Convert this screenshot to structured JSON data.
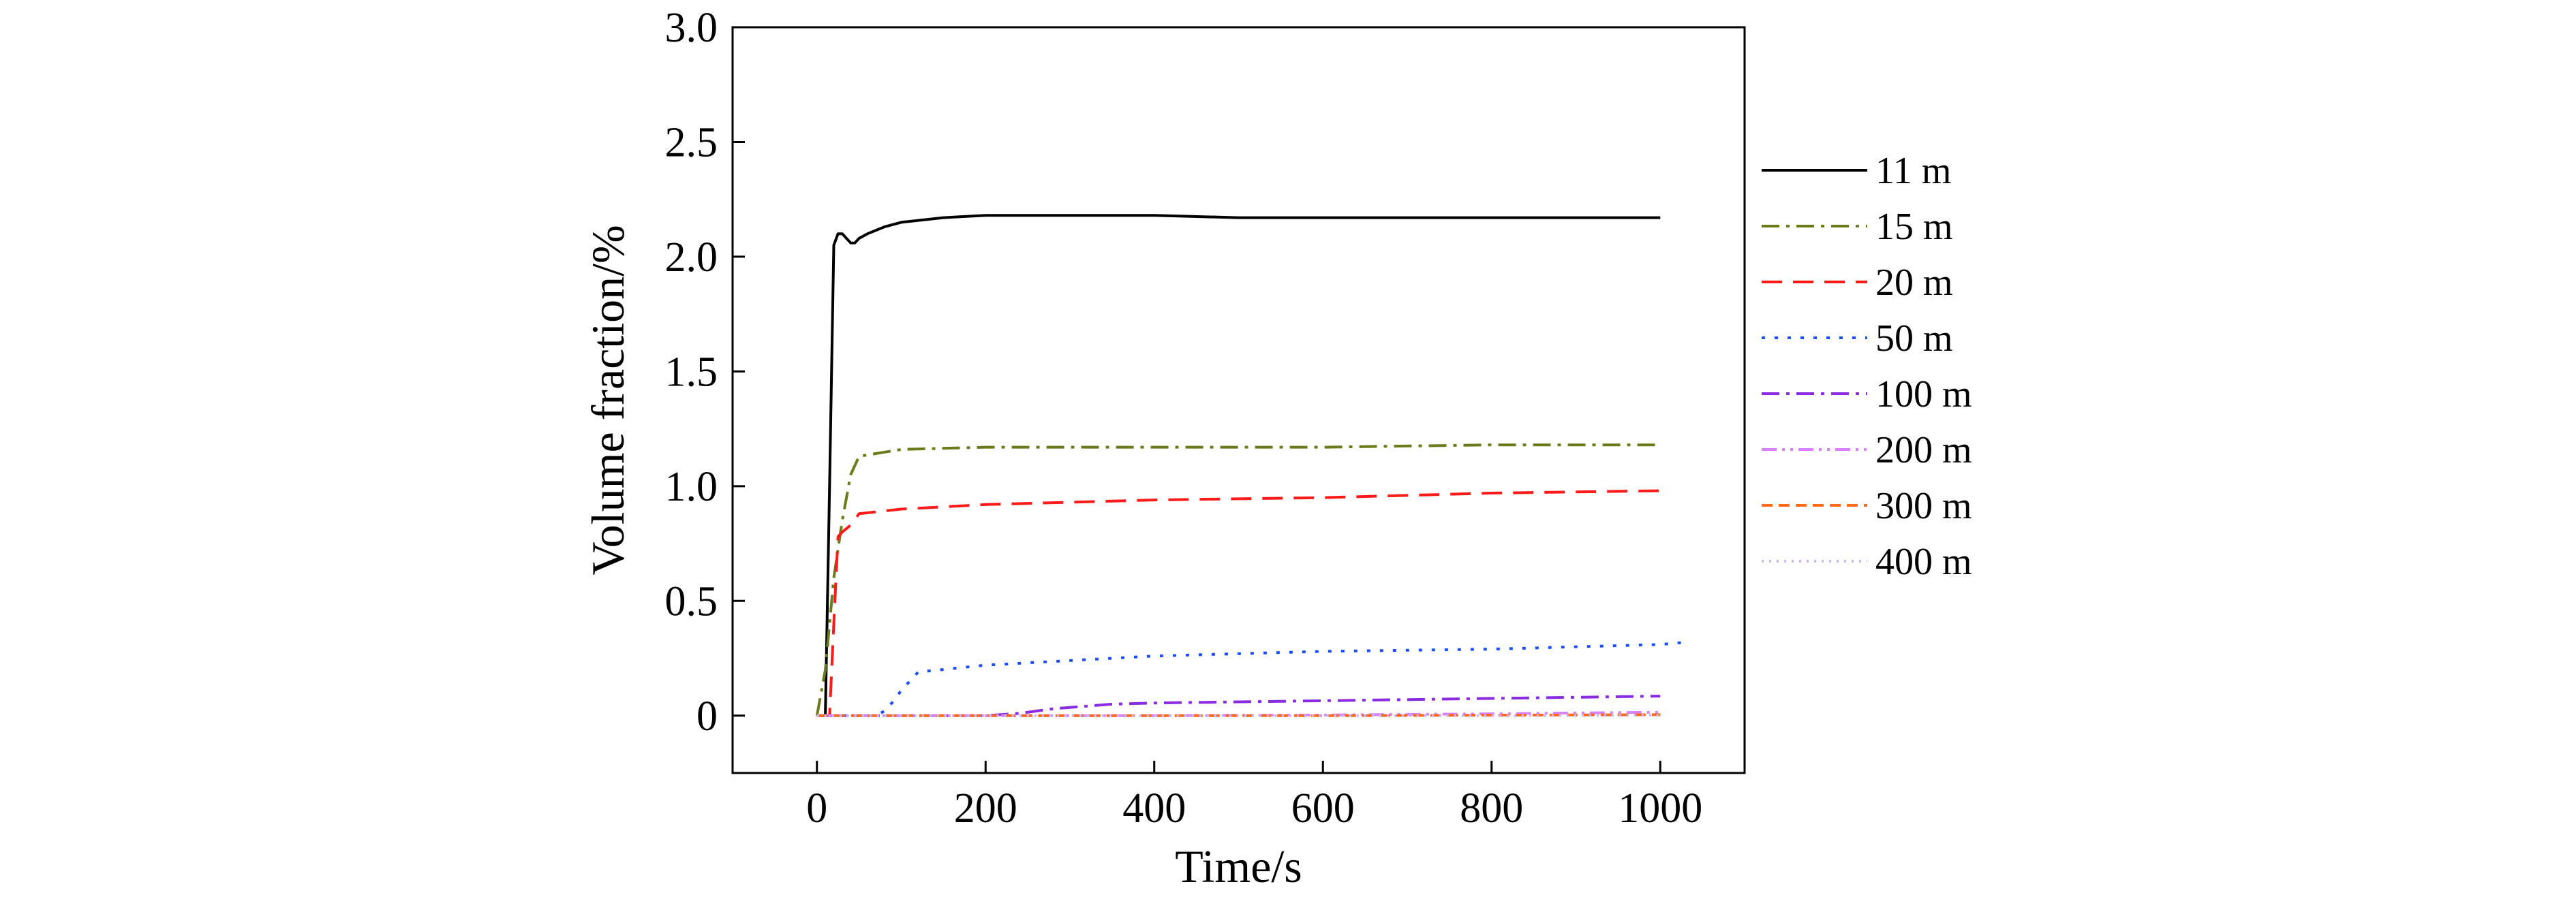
{
  "chart_data": {
    "type": "line",
    "xlabel": "Time/s",
    "ylabel": "Volume fraction/%",
    "xlim": [
      -100,
      1100
    ],
    "ylim": [
      -0.25,
      3.0
    ],
    "xticks": [
      0,
      200,
      400,
      600,
      800,
      1000
    ],
    "xtick_labels": [
      "0",
      "200",
      "400",
      "600",
      "800",
      "1000"
    ],
    "yticks": [
      0,
      0.5,
      1.0,
      1.5,
      2.0,
      2.5,
      3.0
    ],
    "ytick_labels": [
      "0",
      "0.5",
      "1.0",
      "1.5",
      "2.0",
      "2.5",
      "3.0"
    ],
    "grid": false,
    "legend_position": "right",
    "series": [
      {
        "name": "11 m",
        "color": "#000000",
        "dash": "solid",
        "x": [
          0,
          10,
          15,
          20,
          25,
          30,
          35,
          40,
          45,
          50,
          60,
          80,
          100,
          150,
          200,
          250,
          300,
          400,
          500,
          600,
          700,
          800,
          900,
          1000
        ],
        "y": [
          0,
          0,
          1.0,
          2.05,
          2.1,
          2.1,
          2.08,
          2.06,
          2.06,
          2.08,
          2.1,
          2.13,
          2.15,
          2.17,
          2.18,
          2.18,
          2.18,
          2.18,
          2.17,
          2.17,
          2.17,
          2.17,
          2.17,
          2.17
        ]
      },
      {
        "name": "15 m",
        "color": "#6b7a1a",
        "dash": "dashdot",
        "x": [
          0,
          10,
          20,
          30,
          40,
          50,
          100,
          200,
          400,
          600,
          800,
          1000
        ],
        "y": [
          0,
          0.2,
          0.6,
          0.85,
          1.05,
          1.13,
          1.16,
          1.17,
          1.17,
          1.17,
          1.18,
          1.18
        ]
      },
      {
        "name": "20 m",
        "color": "#ff1a1a",
        "dash": "dashed",
        "x": [
          0,
          15,
          20,
          25,
          30,
          40,
          50,
          100,
          200,
          400,
          600,
          800,
          1000
        ],
        "y": [
          0,
          0,
          0.4,
          0.78,
          0.8,
          0.83,
          0.88,
          0.9,
          0.92,
          0.94,
          0.95,
          0.97,
          0.98
        ]
      },
      {
        "name": "50 m",
        "color": "#1a4dff",
        "dash": "dotted",
        "x": [
          0,
          70,
          80,
          90,
          100,
          120,
          200,
          400,
          600,
          800,
          1000,
          1030
        ],
        "y": [
          0,
          0,
          0.02,
          0.06,
          0.11,
          0.19,
          0.22,
          0.26,
          0.28,
          0.29,
          0.31,
          0.32
        ]
      },
      {
        "name": "100 m",
        "color": "#8a2be2",
        "dash": "dashdot",
        "x": [
          0,
          200,
          240,
          280,
          350,
          400,
          600,
          800,
          1000
        ],
        "y": [
          0,
          0,
          0.01,
          0.03,
          0.05,
          0.055,
          0.065,
          0.075,
          0.085
        ]
      },
      {
        "name": "200 m",
        "color": "#d782ff",
        "dash": "dashdotdot",
        "x": [
          0,
          400,
          600,
          800,
          1000
        ],
        "y": [
          0,
          0.0,
          0.003,
          0.008,
          0.015
        ]
      },
      {
        "name": "300 m",
        "color": "#ff6a1a",
        "dash": "shortdash",
        "x": [
          0,
          600,
          800,
          1000
        ],
        "y": [
          0,
          0.0,
          0.002,
          0.004
        ]
      },
      {
        "name": "400 m",
        "color": "#c8b4ff",
        "dash": "finedot",
        "x": [
          0,
          800,
          1000
        ],
        "y": [
          0,
          0.0,
          0.002
        ]
      }
    ]
  }
}
